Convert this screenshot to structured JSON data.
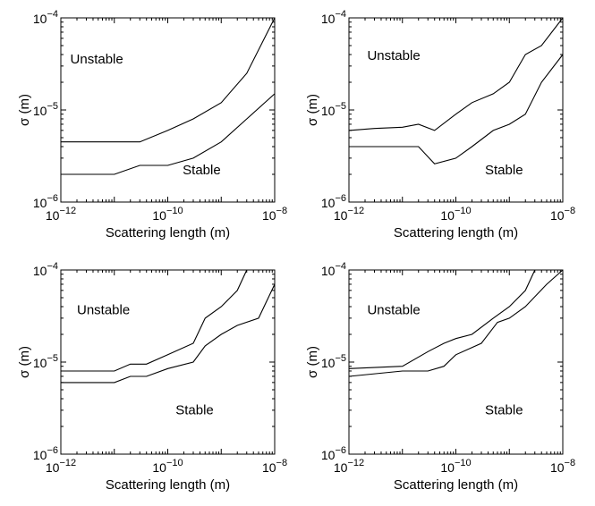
{
  "chart_data": [
    {
      "type": "line",
      "xlabel": "Scattering length (m)",
      "ylabel": "σ (m)",
      "xscale": "log",
      "yscale": "log",
      "xlim": [
        1e-12,
        1e-08
      ],
      "ylim": [
        1e-06,
        0.0001
      ],
      "xticks": [
        {
          "base": "10",
          "exp": "−12"
        },
        {
          "base": "10",
          "exp": "−10"
        },
        {
          "base": "10",
          "exp": "−8"
        }
      ],
      "yticks": [
        {
          "base": "10",
          "exp": "−6"
        },
        {
          "base": "10",
          "exp": "−5"
        },
        {
          "base": "10",
          "exp": "−4"
        }
      ],
      "annotations": [
        {
          "text": "Unstable",
          "x": 1.5e-12,
          "y": 3.2e-05
        },
        {
          "text": "Stable",
          "x": 1.9e-10,
          "y": 2e-06
        }
      ],
      "series": [
        {
          "x": [
            1e-12,
            3e-12,
            1e-11,
            3e-11,
            1e-10,
            3e-10,
            1e-09,
            3e-09,
            1e-08
          ],
          "y": [
            4.5e-06,
            4.5e-06,
            4.5e-06,
            4.5e-06,
            6e-06,
            8e-06,
            1.2e-05,
            2.5e-05,
            0.0001
          ]
        },
        {
          "x": [
            1e-12,
            3e-12,
            1e-11,
            3e-11,
            1e-10,
            3e-10,
            1e-09,
            3e-09,
            1e-08
          ],
          "y": [
            2e-06,
            2e-06,
            2e-06,
            2.5e-06,
            2.5e-06,
            3e-06,
            4.5e-06,
            8e-06,
            1.5e-05
          ]
        }
      ]
    },
    {
      "type": "line",
      "xlabel": "Scattering length (m)",
      "ylabel": "σ (m)",
      "xscale": "log",
      "yscale": "log",
      "xlim": [
        1e-12,
        1e-08
      ],
      "ylim": [
        1e-06,
        0.0001
      ],
      "xticks": [
        {
          "base": "10",
          "exp": "−12"
        },
        {
          "base": "10",
          "exp": "−10"
        },
        {
          "base": "10",
          "exp": "−8"
        }
      ],
      "yticks": [
        {
          "base": "10",
          "exp": "−6"
        },
        {
          "base": "10",
          "exp": "−5"
        },
        {
          "base": "10",
          "exp": "−4"
        }
      ],
      "annotations": [
        {
          "text": "Unstable",
          "x": 2.2e-12,
          "y": 3.5e-05
        },
        {
          "text": "Stable",
          "x": 3.5e-10,
          "y": 2e-06
        }
      ],
      "series": [
        {
          "x": [
            1e-12,
            3e-12,
            1e-11,
            2e-11,
            4e-11,
            1e-10,
            2e-10,
            5e-10,
            1e-09,
            2e-09,
            4e-09,
            1e-08
          ],
          "y": [
            6e-06,
            6.3e-06,
            6.5e-06,
            7e-06,
            6e-06,
            9e-06,
            1.2e-05,
            1.5e-05,
            2e-05,
            4e-05,
            5e-05,
            0.0001
          ]
        },
        {
          "x": [
            1e-12,
            3e-12,
            1e-11,
            2e-11,
            4e-11,
            1e-10,
            2e-10,
            5e-10,
            1e-09,
            2e-09,
            4e-09,
            1e-08
          ],
          "y": [
            4e-06,
            4e-06,
            4e-06,
            4e-06,
            2.6e-06,
            3e-06,
            4e-06,
            6e-06,
            7e-06,
            9e-06,
            2e-05,
            4e-05
          ]
        }
      ]
    },
    {
      "type": "line",
      "xlabel": "Scattering length (m)",
      "ylabel": "σ (m)",
      "xscale": "log",
      "yscale": "log",
      "xlim": [
        1e-12,
        1e-08
      ],
      "ylim": [
        1e-06,
        0.0001
      ],
      "xticks": [
        {
          "base": "10",
          "exp": "−12"
        },
        {
          "base": "10",
          "exp": "−10"
        },
        {
          "base": "10",
          "exp": "−8"
        }
      ],
      "yticks": [
        {
          "base": "10",
          "exp": "−6"
        },
        {
          "base": "10",
          "exp": "−5"
        },
        {
          "base": "10",
          "exp": "−4"
        }
      ],
      "annotations": [
        {
          "text": "Unstable",
          "x": 2e-12,
          "y": 3.3e-05
        },
        {
          "text": "Stable",
          "x": 1.4e-10,
          "y": 2.7e-06
        }
      ],
      "series": [
        {
          "x": [
            1e-12,
            3e-12,
            1e-11,
            2e-11,
            4e-11,
            1e-10,
            3e-10,
            5e-10,
            1e-09,
            2e-09,
            3e-09
          ],
          "y": [
            8e-06,
            8e-06,
            8e-06,
            9.5e-06,
            9.5e-06,
            1.2e-05,
            1.6e-05,
            3e-05,
            4e-05,
            6e-05,
            0.0001
          ]
        },
        {
          "x": [
            1e-12,
            3e-12,
            1e-11,
            2e-11,
            4e-11,
            1e-10,
            3e-10,
            5e-10,
            1e-09,
            2e-09,
            5e-09,
            1e-08
          ],
          "y": [
            6e-06,
            6e-06,
            6e-06,
            7e-06,
            7e-06,
            8.5e-06,
            1e-05,
            1.5e-05,
            2e-05,
            2.5e-05,
            3e-05,
            7e-05
          ]
        }
      ]
    },
    {
      "type": "line",
      "xlabel": "Scattering length (m)",
      "ylabel": "σ (m)",
      "xscale": "log",
      "yscale": "log",
      "xlim": [
        1e-12,
        1e-08
      ],
      "ylim": [
        1e-06,
        0.0001
      ],
      "xticks": [
        {
          "base": "10",
          "exp": "−12"
        },
        {
          "base": "10",
          "exp": "−10"
        },
        {
          "base": "10",
          "exp": "−8"
        }
      ],
      "yticks": [
        {
          "base": "10",
          "exp": "−6"
        },
        {
          "base": "10",
          "exp": "−5"
        },
        {
          "base": "10",
          "exp": "−4"
        }
      ],
      "annotations": [
        {
          "text": "Unstable",
          "x": 2.2e-12,
          "y": 3.3e-05
        },
        {
          "text": "Stable",
          "x": 3.5e-10,
          "y": 2.7e-06
        }
      ],
      "series": [
        {
          "x": [
            1e-12,
            1e-11,
            3e-11,
            6e-11,
            1e-10,
            2e-10,
            5e-10,
            1e-09,
            2e-09,
            3e-09
          ],
          "y": [
            8.5e-06,
            9e-06,
            1.3e-05,
            1.6e-05,
            1.8e-05,
            2e-05,
            3e-05,
            4e-05,
            6e-05,
            0.0001
          ]
        },
        {
          "x": [
            1e-12,
            1e-11,
            3e-11,
            6e-11,
            1e-10,
            3e-10,
            6e-10,
            1e-09,
            2e-09,
            5e-09,
            1e-08
          ],
          "y": [
            7e-06,
            8e-06,
            8e-06,
            9e-06,
            1.2e-05,
            1.6e-05,
            2.7e-05,
            3e-05,
            4e-05,
            7e-05,
            0.0001
          ]
        }
      ]
    }
  ]
}
